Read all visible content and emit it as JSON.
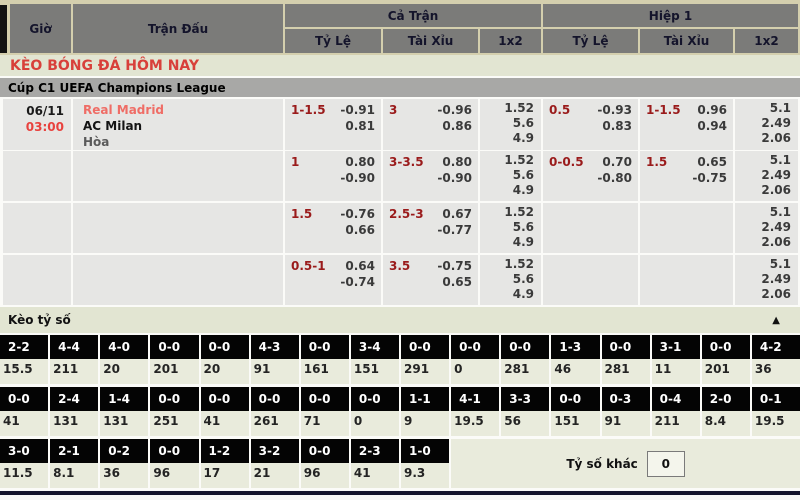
{
  "colors": {
    "tan_background": "#d4cfae",
    "header_gray": "#7b7b79",
    "band_green": "#e2e5d2",
    "title_red": "#d8403a",
    "league_gray": "#a8a8a6",
    "cell_gray": "#e6e6e4",
    "handicap_maroon": "#9a1b1b",
    "home_team_red": "#ef6d66",
    "time_red": "#e8423e",
    "score_cell_black": "#040404",
    "score_odds_bg": "#e9ebdc",
    "bottom_bar_navy": "#16162c"
  },
  "header": {
    "time": "Giờ",
    "match": "Trận Đấu",
    "full_match": "Cả Trận",
    "first_half": "Hiệp 1",
    "handicap": "Tỷ Lệ",
    "over_under": "Tài Xỉu",
    "one_x_two": "1x2"
  },
  "page_title": "KÈO BÓNG ĐÁ HÔM NAY",
  "league_title": "Cúp C1 UEFA Champions League",
  "match": {
    "date": "06/11",
    "time": "03:00",
    "home_team": "Real Madrid",
    "away_team": "AC Milan",
    "draw_label": "Hòa"
  },
  "odds_rows": [
    {
      "ft_handicap": {
        "line": "1-1.5",
        "odds": [
          "-0.91",
          "0.81"
        ]
      },
      "ft_over_under": {
        "line": "3",
        "odds": [
          "-0.96",
          "0.86"
        ]
      },
      "ft_1x2": [
        "1.52",
        "5.6",
        "4.9"
      ],
      "h1_handicap": {
        "line": "0.5",
        "odds": [
          "-0.93",
          "0.83"
        ]
      },
      "h1_over_under": {
        "line": "1-1.5",
        "odds": [
          "0.96",
          "0.94"
        ]
      },
      "h1_1x2": [
        "5.1",
        "2.49",
        "2.06"
      ]
    },
    {
      "ft_handicap": {
        "line": "1",
        "odds": [
          "0.80",
          "-0.90"
        ]
      },
      "ft_over_under": {
        "line": "3-3.5",
        "odds": [
          "0.80",
          "-0.90"
        ]
      },
      "ft_1x2": [
        "1.52",
        "5.6",
        "4.9"
      ],
      "h1_handicap": {
        "line": "0-0.5",
        "odds": [
          "0.70",
          "-0.80"
        ]
      },
      "h1_over_under": {
        "line": "1.5",
        "odds": [
          "0.65",
          "-0.75"
        ]
      },
      "h1_1x2": [
        "5.1",
        "2.49",
        "2.06"
      ]
    },
    {
      "ft_handicap": {
        "line": "1.5",
        "odds": [
          "-0.76",
          "0.66"
        ]
      },
      "ft_over_under": {
        "line": "2.5-3",
        "odds": [
          "0.67",
          "-0.77"
        ]
      },
      "ft_1x2": [
        "1.52",
        "5.6",
        "4.9"
      ],
      "h1_handicap": null,
      "h1_over_under": null,
      "h1_1x2": [
        "5.1",
        "2.49",
        "2.06"
      ]
    },
    {
      "ft_handicap": {
        "line": "0.5-1",
        "odds": [
          "0.64",
          "-0.74"
        ]
      },
      "ft_over_under": {
        "line": "3.5",
        "odds": [
          "-0.75",
          "0.65"
        ]
      },
      "ft_1x2": [
        "1.52",
        "5.6",
        "4.9"
      ],
      "h1_handicap": null,
      "h1_over_under": null,
      "h1_1x2": [
        "5.1",
        "2.49",
        "2.06"
      ]
    }
  ],
  "score_section": {
    "title": "Kèo tỷ số",
    "collapse_icon": "▲",
    "rows": [
      [
        {
          "score": "2-2",
          "odds": "15.5"
        },
        {
          "score": "4-4",
          "odds": "211"
        },
        {
          "score": "4-0",
          "odds": "20"
        },
        {
          "score": "0-0",
          "odds": "201"
        },
        {
          "score": "0-0",
          "odds": "20"
        },
        {
          "score": "4-3",
          "odds": "91"
        },
        {
          "score": "0-0",
          "odds": "161"
        },
        {
          "score": "3-4",
          "odds": "151"
        },
        {
          "score": "0-0",
          "odds": "291"
        },
        {
          "score": "0-0",
          "odds": "0"
        },
        {
          "score": "0-0",
          "odds": "281"
        },
        {
          "score": "1-3",
          "odds": "46"
        },
        {
          "score": "0-0",
          "odds": "281"
        },
        {
          "score": "3-1",
          "odds": "11"
        },
        {
          "score": "0-0",
          "odds": "201"
        },
        {
          "score": "4-2",
          "odds": "36"
        }
      ],
      [
        {
          "score": "0-0",
          "odds": "41"
        },
        {
          "score": "2-4",
          "odds": "131"
        },
        {
          "score": "1-4",
          "odds": "131"
        },
        {
          "score": "0-0",
          "odds": "251"
        },
        {
          "score": "0-0",
          "odds": "41"
        },
        {
          "score": "0-0",
          "odds": "261"
        },
        {
          "score": "0-0",
          "odds": "71"
        },
        {
          "score": "0-0",
          "odds": "0"
        },
        {
          "score": "1-1",
          "odds": "9"
        },
        {
          "score": "4-1",
          "odds": "19.5"
        },
        {
          "score": "3-3",
          "odds": "56"
        },
        {
          "score": "0-0",
          "odds": "151"
        },
        {
          "score": "0-3",
          "odds": "91"
        },
        {
          "score": "0-4",
          "odds": "211"
        },
        {
          "score": "2-0",
          "odds": "8.4"
        },
        {
          "score": "0-1",
          "odds": "19.5"
        }
      ],
      [
        {
          "score": "3-0",
          "odds": "11.5"
        },
        {
          "score": "2-1",
          "odds": "8.1"
        },
        {
          "score": "0-2",
          "odds": "36"
        },
        {
          "score": "0-0",
          "odds": "96"
        },
        {
          "score": "1-2",
          "odds": "17"
        },
        {
          "score": "3-2",
          "odds": "21"
        },
        {
          "score": "0-0",
          "odds": "96"
        },
        {
          "score": "2-3",
          "odds": "41"
        },
        {
          "score": "1-0",
          "odds": "9.3"
        }
      ]
    ],
    "other_score": {
      "label": "Tỷ số khác",
      "value": "0"
    }
  }
}
